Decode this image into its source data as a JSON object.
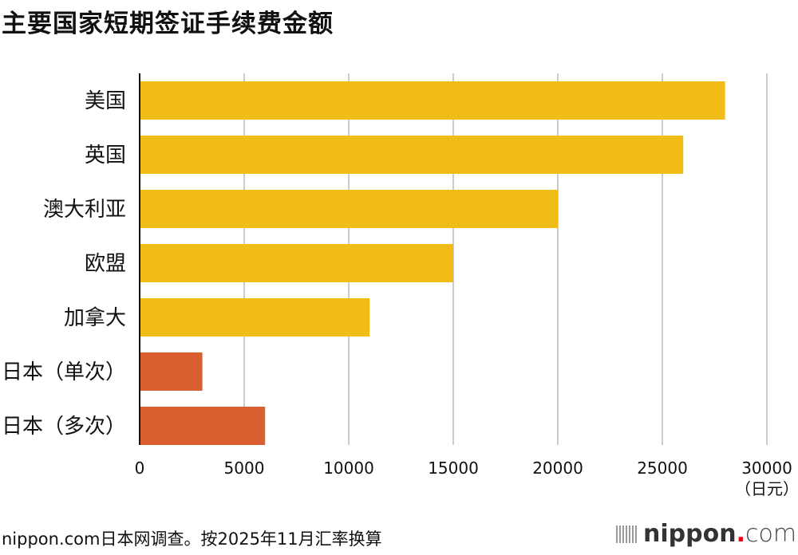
{
  "chart_data": {
    "type": "bar",
    "orientation": "horizontal",
    "title": "主要国家短期签证手续费金额",
    "categories": [
      "美国",
      "英国",
      "澳大利亚",
      "欧盟",
      "加拿大",
      "日本（单次）",
      "日本（多次）"
    ],
    "values": [
      28000,
      26000,
      20000,
      15000,
      11000,
      3000,
      6000
    ],
    "bar_colors": [
      "#F0BC15",
      "#F0BC15",
      "#F0BC15",
      "#F0BC15",
      "#F0BC15",
      "#D95F30",
      "#D95F30"
    ],
    "xlim": [
      0,
      30000
    ],
    "xticks": [
      "0",
      "5000",
      "10000",
      "15000",
      "20000",
      "25000",
      "30000"
    ],
    "xunit": "（日元）",
    "grid": true,
    "grid_color": "#CCCCCC"
  },
  "source": "nippon.com日本网调查。按2025年11月汇率换算",
  "logo": {
    "text": "nippon.com",
    "name": "nippon",
    "dot": ".",
    "tld": "com"
  }
}
